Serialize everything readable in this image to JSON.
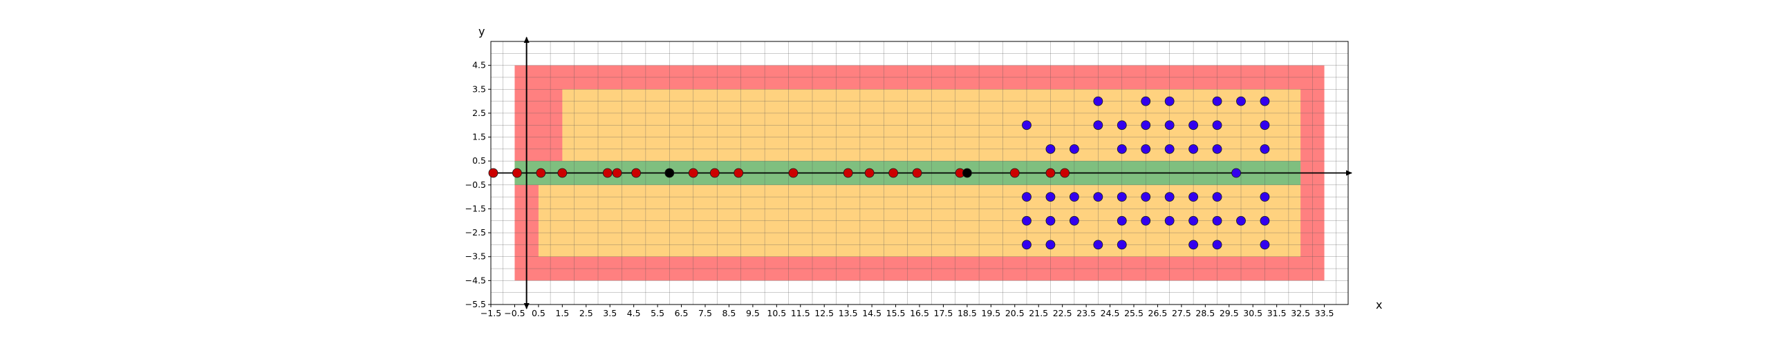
{
  "chart_data": {
    "type": "scatter",
    "xlabel": "x",
    "ylabel": "y",
    "xlim": [
      -1.5,
      34.5
    ],
    "ylim": [
      -5.5,
      5.5
    ],
    "grid": true,
    "x_ticks": [
      -1.5,
      -0.5,
      0.5,
      1.5,
      2.5,
      3.5,
      4.5,
      5.5,
      6.5,
      7.5,
      8.5,
      9.5,
      10.5,
      11.5,
      12.5,
      13.5,
      14.5,
      15.5,
      16.5,
      17.5,
      18.5,
      19.5,
      20.5,
      21.5,
      22.5,
      23.5,
      24.5,
      25.5,
      26.5,
      27.5,
      28.5,
      29.5,
      30.5,
      31.5,
      32.5,
      33.5
    ],
    "x_tick_labels": [
      "−1.5",
      "−0.5",
      "0.5",
      "1.5",
      "2.5",
      "3.5",
      "4.5",
      "5.5",
      "6.5",
      "7.5",
      "8.5",
      "9.5",
      "10.5",
      "11.5",
      "12.5",
      "13.5",
      "14.5",
      "15.5",
      "16.5",
      "17.5",
      "18.5",
      "19.5",
      "20.5",
      "21.5",
      "22.5",
      "23.5",
      "24.5",
      "25.5",
      "26.5",
      "27.5",
      "28.5",
      "29.5",
      "30.5",
      "31.5",
      "32.5",
      "33.5"
    ],
    "y_ticks": [
      4.5,
      3.5,
      2.5,
      1.5,
      0.5,
      -0.5,
      -1.5,
      -2.5,
      -3.5,
      -4.5,
      -5.5
    ],
    "y_tick_labels": [
      "4.5",
      "3.5",
      "2.5",
      "1.5",
      "0.5",
      "−0.5",
      "−1.5",
      "−2.5",
      "−3.5",
      "−4.5",
      "−5.5"
    ],
    "regions": [
      {
        "fill": "#ff8080",
        "kind": "rect",
        "x": [
          -0.5,
          33.5
        ],
        "y": [
          -4.5,
          4.5
        ]
      },
      {
        "fill": "#ffd27f",
        "kind": "polygon",
        "points": [
          [
            1.5,
            3.5
          ],
          [
            32.5,
            3.5
          ],
          [
            32.5,
            -3.5
          ],
          [
            0.5,
            -3.5
          ],
          [
            0.5,
            -0.5
          ],
          [
            -0.5,
            -0.5
          ],
          [
            -0.5,
            0.5
          ],
          [
            1.5,
            0.5
          ]
        ]
      },
      {
        "fill": "#7fbf7f",
        "kind": "rect",
        "x": [
          -0.5,
          32.5
        ],
        "y": [
          -0.5,
          0.5
        ]
      }
    ],
    "series": [
      {
        "color": "#cc0000",
        "points": [
          [
            -1.4,
            0
          ],
          [
            -0.4,
            0
          ],
          [
            0.6,
            0
          ],
          [
            1.5,
            0
          ],
          [
            3.4,
            0
          ],
          [
            3.8,
            0
          ],
          [
            4.6,
            0
          ],
          [
            7.0,
            0
          ],
          [
            7.9,
            0
          ],
          [
            8.9,
            0
          ],
          [
            11.2,
            0
          ],
          [
            13.5,
            0
          ],
          [
            14.4,
            0
          ],
          [
            15.4,
            0
          ],
          [
            16.4,
            0
          ],
          [
            18.2,
            0
          ],
          [
            20.5,
            0
          ],
          [
            22.0,
            0
          ],
          [
            22.6,
            0
          ]
        ]
      },
      {
        "color": "#000000",
        "points": [
          [
            6.0,
            0
          ],
          [
            18.5,
            0
          ]
        ]
      },
      {
        "color": "#3300ee",
        "points": [
          [
            24.0,
            3
          ],
          [
            26.0,
            3
          ],
          [
            27.0,
            3
          ],
          [
            29.0,
            3
          ],
          [
            30.0,
            3
          ],
          [
            31.0,
            3
          ],
          [
            21.0,
            2
          ],
          [
            24.0,
            2
          ],
          [
            25.0,
            2
          ],
          [
            26.0,
            2
          ],
          [
            27.0,
            2
          ],
          [
            28.0,
            2
          ],
          [
            29.0,
            2
          ],
          [
            31.0,
            2
          ],
          [
            22.0,
            1
          ],
          [
            23.0,
            1
          ],
          [
            25.0,
            1
          ],
          [
            26.0,
            1
          ],
          [
            27.0,
            1
          ],
          [
            28.0,
            1
          ],
          [
            29.0,
            1
          ],
          [
            31.0,
            1
          ],
          [
            29.8,
            0
          ],
          [
            21.0,
            -1
          ],
          [
            22.0,
            -1
          ],
          [
            23.0,
            -1
          ],
          [
            24.0,
            -1
          ],
          [
            25.0,
            -1
          ],
          [
            26.0,
            -1
          ],
          [
            27.0,
            -1
          ],
          [
            28.0,
            -1
          ],
          [
            29.0,
            -1
          ],
          [
            31.0,
            -1
          ],
          [
            21.0,
            -2
          ],
          [
            22.0,
            -2
          ],
          [
            23.0,
            -2
          ],
          [
            25.0,
            -2
          ],
          [
            26.0,
            -2
          ],
          [
            27.0,
            -2
          ],
          [
            28.0,
            -2
          ],
          [
            29.0,
            -2
          ],
          [
            30.0,
            -2
          ],
          [
            31.0,
            -2
          ],
          [
            21.0,
            -3
          ],
          [
            22.0,
            -3
          ],
          [
            24.0,
            -3
          ],
          [
            25.0,
            -3
          ],
          [
            28.0,
            -3
          ],
          [
            29.0,
            -3
          ],
          [
            31.0,
            -3
          ]
        ]
      }
    ]
  }
}
